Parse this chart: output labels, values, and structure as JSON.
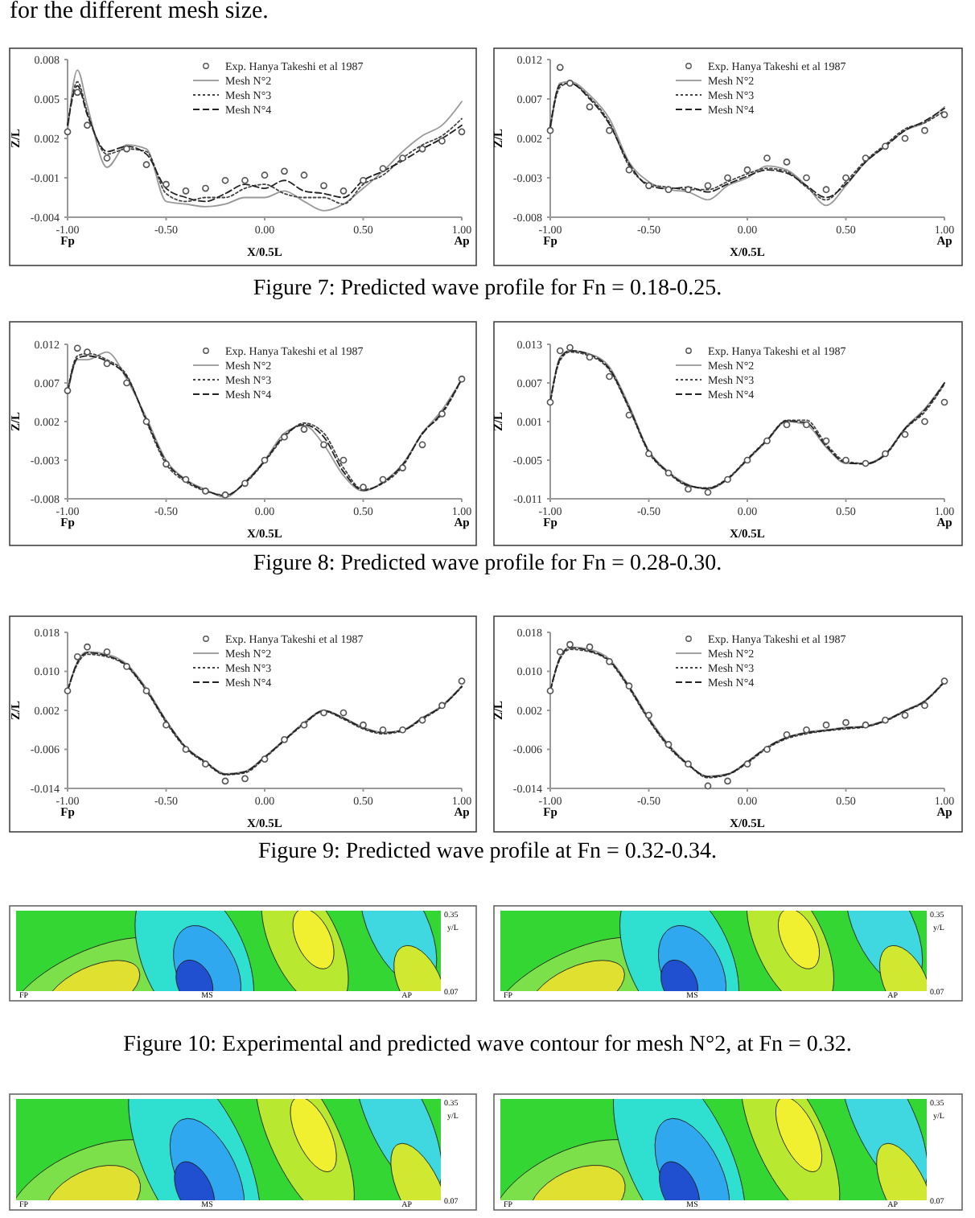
{
  "chart_data": [
    {
      "type": "line",
      "xlabel": "X/0.5L",
      "ylabel": "Z/L",
      "legend": "top",
      "xlim": [
        -1,
        1
      ],
      "ylim": [
        -0.004,
        0.008
      ],
      "xticks": [
        {
          "value": -1,
          "label": "-1.00"
        },
        {
          "value": -0.5,
          "label": "-0.50"
        },
        {
          "value": 0,
          "label": "0.00"
        },
        {
          "value": 0.5,
          "label": "0.50"
        },
        {
          "value": 1,
          "label": "1.00"
        }
      ],
      "yticks": [
        -0.004,
        -0.001,
        0.002,
        0.005,
        0.008
      ],
      "annotations": [
        "Fp",
        "Ap",
        "for the different mesh size.",
        "Figure 7: Predicted wave profile for Fn = 0.18-0.25."
      ],
      "x": [
        -1,
        -0.95,
        -0.9,
        -0.8,
        -0.7,
        -0.6,
        -0.5,
        -0.4,
        -0.3,
        -0.2,
        -0.1,
        0,
        0.1,
        0.2,
        0.3,
        0.4,
        0.5,
        0.6,
        0.7,
        0.8,
        0.9,
        1
      ],
      "series": [
        {
          "name": "Exp. Hanya Takeshi et al 1987",
          "type": "scatter",
          "marker": "circle",
          "color": "#555555",
          "values": [
            0.0025,
            0.0055,
            0.003,
            0.0005,
            0.0012,
            0.0,
            -0.0015,
            -0.002,
            -0.0018,
            -0.0012,
            -0.0012,
            -0.0008,
            -0.0005,
            -0.0008,
            -0.0016,
            -0.002,
            -0.0012,
            -0.0003,
            0.0005,
            0.0012,
            0.0018,
            0.0025
          ]
        },
        {
          "name": "Mesh N°2",
          "type": "line",
          "line_style": "solid",
          "color": "#999999",
          "values": [
            0.0025,
            0.0072,
            0.0045,
            -0.0002,
            0.0015,
            0.0012,
            -0.0028,
            -0.003,
            -0.0032,
            -0.003,
            -0.0025,
            -0.0025,
            -0.002,
            -0.0028,
            -0.0035,
            -0.003,
            -0.0018,
            -0.0005,
            0.001,
            0.0022,
            0.003,
            0.0048
          ]
        },
        {
          "name": "Mesh N°3",
          "type": "line",
          "line_style": "dotted",
          "color": "#444444",
          "values": [
            0.003,
            0.0063,
            0.004,
            0.0008,
            0.0012,
            0.001,
            -0.0022,
            -0.0028,
            -0.0025,
            -0.0025,
            -0.0018,
            -0.0015,
            -0.0022,
            -0.0025,
            -0.0025,
            -0.003,
            -0.0015,
            -0.0008,
            0.0005,
            0.0015,
            0.0022,
            0.0035
          ]
        },
        {
          "name": "Mesh N°4",
          "type": "line",
          "line_style": "dashed",
          "color": "#222222",
          "values": [
            0.003,
            0.006,
            0.0038,
            0.001,
            0.0014,
            0.0008,
            -0.0018,
            -0.0025,
            -0.0028,
            -0.0022,
            -0.0015,
            -0.0018,
            -0.0012,
            -0.002,
            -0.0022,
            -0.0025,
            -0.0012,
            -0.0005,
            0.0003,
            0.0012,
            0.002,
            0.003
          ]
        }
      ]
    },
    {
      "type": "line",
      "xlabel": "X/0.5L",
      "ylabel": "Z/L",
      "legend": "top",
      "xlim": [
        -1,
        1
      ],
      "ylim": [
        -0.008,
        0.012
      ],
      "xticks": [
        {
          "value": -1,
          "label": "-1.00"
        },
        {
          "value": -0.5,
          "label": "-0.50"
        },
        {
          "value": 0,
          "label": "0.00"
        },
        {
          "value": 0.5,
          "label": "0.50"
        },
        {
          "value": 1,
          "label": "1.00"
        }
      ],
      "yticks": [
        -0.008,
        -0.003,
        0.002,
        0.007,
        0.012
      ],
      "annotations": [
        "Fp",
        "Ap"
      ],
      "x": [
        -1,
        -0.95,
        -0.9,
        -0.8,
        -0.7,
        -0.6,
        -0.5,
        -0.4,
        -0.3,
        -0.2,
        -0.1,
        0,
        0.1,
        0.2,
        0.3,
        0.4,
        0.5,
        0.6,
        0.7,
        0.8,
        0.9,
        1
      ],
      "series": [
        {
          "name": "Exp. Hanya Takeshi et al 1987",
          "type": "scatter",
          "marker": "circle",
          "color": "#555555",
          "values": [
            0.003,
            0.011,
            0.009,
            0.006,
            0.003,
            -0.002,
            -0.004,
            -0.0045,
            -0.0045,
            -0.004,
            -0.003,
            -0.002,
            -0.0005,
            -0.001,
            -0.003,
            -0.0045,
            -0.003,
            -0.0005,
            0.001,
            0.002,
            0.003,
            0.005
          ]
        },
        {
          "name": "Mesh N°2",
          "type": "line",
          "line_style": "solid",
          "color": "#999999",
          "values": [
            0.003,
            0.009,
            0.0092,
            0.0075,
            0.0045,
            -0.001,
            -0.0035,
            -0.0045,
            -0.0048,
            -0.0058,
            -0.004,
            -0.003,
            -0.0015,
            -0.002,
            -0.004,
            -0.0065,
            -0.004,
            -0.001,
            0.001,
            0.003,
            0.004,
            0.006
          ]
        },
        {
          "name": "Mesh N°3",
          "type": "line",
          "line_style": "dotted",
          "color": "#444444",
          "values": [
            0.0035,
            0.0085,
            0.009,
            0.0072,
            0.004,
            -0.0015,
            -0.0038,
            -0.0042,
            -0.0045,
            -0.0045,
            -0.0035,
            -0.0025,
            -0.0018,
            -0.0022,
            -0.0042,
            -0.0058,
            -0.0035,
            -0.0008,
            0.0012,
            0.0032,
            0.004,
            0.0055
          ]
        },
        {
          "name": "Mesh N°4",
          "type": "line",
          "line_style": "dashed",
          "color": "#222222",
          "values": [
            0.0035,
            0.0088,
            0.009,
            0.007,
            0.0038,
            -0.0012,
            -0.004,
            -0.0044,
            -0.0042,
            -0.0048,
            -0.0038,
            -0.0028,
            -0.002,
            -0.0024,
            -0.004,
            -0.0055,
            -0.0038,
            -0.001,
            0.001,
            0.003,
            0.0042,
            0.0058
          ]
        }
      ]
    },
    {
      "type": "line",
      "xlabel": "X/0.5L",
      "ylabel": "Z/L",
      "legend": "top",
      "xlim": [
        -1,
        1
      ],
      "ylim": [
        -0.008,
        0.012
      ],
      "xticks": [
        {
          "value": -1,
          "label": "-1.00"
        },
        {
          "value": -0.5,
          "label": "-0.50"
        },
        {
          "value": 0,
          "label": "0.00"
        },
        {
          "value": 0.5,
          "label": "0.50"
        },
        {
          "value": 1,
          "label": "1.00"
        }
      ],
      "yticks": [
        -0.008,
        -0.003,
        0.002,
        0.007,
        0.012
      ],
      "annotations": [
        "Fp",
        "Ap",
        "Figure 8: Predicted wave profile for Fn = 0.28-0.30."
      ],
      "x": [
        -1,
        -0.95,
        -0.9,
        -0.8,
        -0.7,
        -0.6,
        -0.5,
        -0.4,
        -0.3,
        -0.2,
        -0.1,
        0,
        0.1,
        0.2,
        0.3,
        0.4,
        0.5,
        0.6,
        0.7,
        0.8,
        0.9,
        1
      ],
      "series": [
        {
          "name": "Exp. Hanya Takeshi et al 1987",
          "type": "scatter",
          "marker": "circle",
          "color": "#555555",
          "values": [
            0.006,
            0.0115,
            0.011,
            0.0095,
            0.007,
            0.002,
            -0.0035,
            -0.0055,
            -0.007,
            -0.0075,
            -0.006,
            -0.003,
            0.0,
            0.001,
            -0.001,
            -0.003,
            -0.0065,
            -0.0055,
            -0.004,
            -0.001,
            0.003,
            0.0075
          ]
        },
        {
          "name": "Mesh N°2",
          "type": "line",
          "line_style": "solid",
          "color": "#999999",
          "values": [
            0.0055,
            0.01,
            0.01,
            0.011,
            0.0075,
            0.0025,
            -0.003,
            -0.0055,
            -0.0068,
            -0.0078,
            -0.0058,
            -0.003,
            0.0005,
            0.0015,
            -0.001,
            -0.005,
            -0.007,
            -0.0058,
            -0.0035,
            0.0005,
            0.0035,
            0.0075
          ]
        },
        {
          "name": "Mesh N°3",
          "type": "line",
          "line_style": "dotted",
          "color": "#444444",
          "values": [
            0.006,
            0.0105,
            0.0108,
            0.01,
            0.008,
            0.002,
            -0.0035,
            -0.0058,
            -0.007,
            -0.0075,
            -0.006,
            -0.0032,
            0.0,
            0.0018,
            0.0005,
            -0.004,
            -0.0068,
            -0.006,
            -0.0038,
            0.0005,
            0.003,
            0.0075
          ]
        },
        {
          "name": "Mesh N°4",
          "type": "line",
          "line_style": "dashed",
          "color": "#222222",
          "values": [
            0.0058,
            0.0102,
            0.0105,
            0.0098,
            0.0078,
            0.0022,
            -0.0032,
            -0.0056,
            -0.0069,
            -0.0076,
            -0.0059,
            -0.0031,
            0.0002,
            0.0016,
            0.0,
            -0.0045,
            -0.0069,
            -0.0059,
            -0.0036,
            0.0004,
            0.0032,
            0.0075
          ]
        }
      ]
    },
    {
      "type": "line",
      "xlabel": "X/0.5L",
      "ylabel": "Z/L",
      "legend": "top",
      "xlim": [
        -1,
        1
      ],
      "ylim": [
        -0.011,
        0.013
      ],
      "xticks": [
        {
          "value": -1,
          "label": "-1.00"
        },
        {
          "value": -0.5,
          "label": "-0.50"
        },
        {
          "value": 0,
          "label": "0.00"
        },
        {
          "value": 0.5,
          "label": "0.50"
        },
        {
          "value": 1,
          "label": "1.00"
        }
      ],
      "yticks": [
        -0.011,
        -0.005,
        0.001,
        0.007,
        0.013
      ],
      "annotations": [
        "Fp",
        "Ap"
      ],
      "x": [
        -1,
        -0.95,
        -0.9,
        -0.8,
        -0.7,
        -0.6,
        -0.5,
        -0.4,
        -0.3,
        -0.2,
        -0.1,
        0,
        0.1,
        0.2,
        0.3,
        0.4,
        0.5,
        0.6,
        0.7,
        0.8,
        0.9,
        1
      ],
      "series": [
        {
          "name": "Exp. Hanya Takeshi et al 1987",
          "type": "scatter",
          "marker": "circle",
          "color": "#555555",
          "values": [
            0.004,
            0.012,
            0.0125,
            0.011,
            0.008,
            0.002,
            -0.004,
            -0.007,
            -0.0095,
            -0.01,
            -0.008,
            -0.005,
            -0.002,
            0.0005,
            0.0005,
            -0.002,
            -0.005,
            -0.0055,
            -0.004,
            -0.001,
            0.001,
            0.004
          ]
        },
        {
          "name": "Mesh N°2",
          "type": "line",
          "line_style": "solid",
          "color": "#999999",
          "values": [
            0.004,
            0.011,
            0.012,
            0.0115,
            0.0095,
            0.0035,
            -0.0035,
            -0.0068,
            -0.0088,
            -0.0095,
            -0.008,
            -0.005,
            -0.002,
            0.001,
            0.0005,
            -0.003,
            -0.0055,
            -0.0055,
            -0.004,
            0.0,
            0.003,
            0.007
          ]
        },
        {
          "name": "Mesh N°3",
          "type": "line",
          "line_style": "dotted",
          "color": "#444444",
          "values": [
            0.004,
            0.0105,
            0.0118,
            0.0112,
            0.009,
            0.003,
            -0.0038,
            -0.007,
            -0.009,
            -0.0093,
            -0.0078,
            -0.0048,
            -0.0018,
            0.0012,
            0.0012,
            -0.0025,
            -0.0052,
            -0.0055,
            -0.0042,
            -0.0002,
            0.0025,
            0.0068
          ]
        },
        {
          "name": "Mesh N°4",
          "type": "line",
          "line_style": "dashed",
          "color": "#222222",
          "values": [
            0.004,
            0.0108,
            0.012,
            0.0114,
            0.0092,
            0.0032,
            -0.0036,
            -0.0069,
            -0.0089,
            -0.0094,
            -0.0079,
            -0.0049,
            -0.0019,
            0.0011,
            0.0008,
            -0.0028,
            -0.0054,
            -0.0056,
            -0.0041,
            -0.0001,
            0.0028,
            0.007
          ]
        }
      ]
    },
    {
      "type": "line",
      "xlabel": "X/0.5L",
      "ylabel": "Z/L",
      "legend": "top",
      "xlim": [
        -1,
        1
      ],
      "ylim": [
        -0.014,
        0.018
      ],
      "xticks": [
        {
          "value": -1,
          "label": "-1.00"
        },
        {
          "value": -0.5,
          "label": "-0.50"
        },
        {
          "value": 0,
          "label": "0.00"
        },
        {
          "value": 0.5,
          "label": "0.50"
        },
        {
          "value": 1,
          "label": "1.00"
        }
      ],
      "yticks": [
        -0.014,
        -0.006,
        0.002,
        {
          "value": 0.01,
          "label": "0.010"
        },
        0.018
      ],
      "annotations": [
        "Fp",
        "Ap",
        "Figure 9: Predicted wave profile at Fn = 0.32-0.34."
      ],
      "x": [
        -1,
        -0.95,
        -0.9,
        -0.8,
        -0.7,
        -0.6,
        -0.5,
        -0.4,
        -0.3,
        -0.2,
        -0.1,
        0,
        0.1,
        0.2,
        0.3,
        0.4,
        0.5,
        0.6,
        0.7,
        0.8,
        0.9,
        1
      ],
      "series": [
        {
          "name": "Exp. Hanya Takeshi et al 1987",
          "type": "scatter",
          "marker": "circle",
          "color": "#555555",
          "values": [
            0.006,
            0.013,
            0.015,
            0.014,
            0.011,
            0.006,
            -0.001,
            -0.006,
            -0.009,
            -0.0125,
            -0.012,
            -0.008,
            -0.004,
            -0.001,
            0.0015,
            0.0015,
            -0.001,
            -0.002,
            -0.002,
            0.0,
            0.003,
            0.008
          ]
        },
        {
          "name": "Mesh N°2",
          "type": "line",
          "line_style": "solid",
          "color": "#999999",
          "values": [
            0.006,
            0.012,
            0.014,
            0.0135,
            0.0115,
            0.0065,
            0.0,
            -0.0055,
            -0.0085,
            -0.011,
            -0.0105,
            -0.0075,
            -0.004,
            -0.0005,
            0.002,
            0.0005,
            -0.0015,
            -0.0025,
            -0.002,
            0.0005,
            0.003,
            0.007
          ]
        },
        {
          "name": "Mesh N°3",
          "type": "line",
          "line_style": "dotted",
          "color": "#444444",
          "values": [
            0.006,
            0.0115,
            0.0135,
            0.013,
            0.011,
            0.006,
            -0.0005,
            -0.0058,
            -0.0088,
            -0.0112,
            -0.0108,
            -0.0078,
            -0.0042,
            -0.0008,
            0.0018,
            0.0002,
            -0.0018,
            -0.0028,
            -0.0022,
            0.0002,
            0.0028,
            0.0068
          ]
        },
        {
          "name": "Mesh N°4",
          "type": "line",
          "line_style": "dashed",
          "color": "#222222",
          "values": [
            0.006,
            0.0118,
            0.0138,
            0.0132,
            0.0112,
            0.0062,
            -0.0002,
            -0.0056,
            -0.0086,
            -0.0111,
            -0.0106,
            -0.0076,
            -0.0041,
            -0.0006,
            0.0019,
            0.0004,
            -0.0016,
            -0.0026,
            -0.0021,
            0.0004,
            0.0029,
            0.0069
          ]
        }
      ]
    },
    {
      "type": "line",
      "xlabel": "X/0.5L",
      "ylabel": "Z/L",
      "legend": "top",
      "xlim": [
        -1,
        1
      ],
      "ylim": [
        -0.014,
        0.018
      ],
      "xticks": [
        {
          "value": -1,
          "label": "-1.00"
        },
        {
          "value": -0.5,
          "label": "-0.50"
        },
        {
          "value": 0,
          "label": "0.00"
        },
        {
          "value": 0.5,
          "label": "0.50"
        },
        {
          "value": 1,
          "label": "1.00"
        }
      ],
      "yticks": [
        -0.014,
        -0.006,
        0.002,
        {
          "value": 0.01,
          "label": "0.010"
        },
        0.018
      ],
      "annotations": [
        "Fp",
        "Ap"
      ],
      "x": [
        -1,
        -0.95,
        -0.9,
        -0.8,
        -0.7,
        -0.6,
        -0.5,
        -0.4,
        -0.3,
        -0.2,
        -0.1,
        0,
        0.1,
        0.2,
        0.3,
        0.4,
        0.5,
        0.6,
        0.7,
        0.8,
        0.9,
        1
      ],
      "series": [
        {
          "name": "Exp. Hanya Takeshi et al 1987",
          "type": "scatter",
          "marker": "circle",
          "color": "#555555",
          "values": [
            0.006,
            0.014,
            0.0155,
            0.015,
            0.012,
            0.007,
            0.001,
            -0.005,
            -0.009,
            -0.0135,
            -0.0125,
            -0.009,
            -0.006,
            -0.003,
            -0.002,
            -0.001,
            -0.0005,
            -0.001,
            0.0,
            0.001,
            0.003,
            0.008
          ]
        },
        {
          "name": "Mesh N°2",
          "type": "line",
          "line_style": "solid",
          "color": "#999999",
          "values": [
            0.006,
            0.013,
            0.015,
            0.0145,
            0.0125,
            0.007,
            0.0005,
            -0.005,
            -0.009,
            -0.0115,
            -0.011,
            -0.0085,
            -0.0055,
            -0.0035,
            -0.0025,
            -0.002,
            -0.0015,
            -0.0012,
            0.0,
            0.002,
            0.004,
            0.008
          ]
        },
        {
          "name": "Mesh N°3",
          "type": "line",
          "line_style": "dotted",
          "color": "#444444",
          "values": [
            0.006,
            0.0125,
            0.0145,
            0.014,
            0.012,
            0.0065,
            0.0,
            -0.0055,
            -0.0092,
            -0.0118,
            -0.0112,
            -0.0088,
            -0.0058,
            -0.0038,
            -0.0028,
            -0.0022,
            -0.0018,
            -0.0014,
            -0.0002,
            0.0018,
            0.0038,
            0.0078
          ]
        },
        {
          "name": "Mesh N°4",
          "type": "line",
          "line_style": "dashed",
          "color": "#222222",
          "values": [
            0.006,
            0.0128,
            0.0148,
            0.0142,
            0.0122,
            0.0068,
            0.0002,
            -0.0052,
            -0.0091,
            -0.0116,
            -0.0111,
            -0.0086,
            -0.0056,
            -0.0036,
            -0.0026,
            -0.0021,
            -0.0016,
            -0.0013,
            -0.0001,
            0.0019,
            0.0039,
            0.0079
          ]
        }
      ]
    },
    {
      "type": "other",
      "annotations": [
        "0.35",
        "y/L",
        "FP",
        "MS",
        "AP",
        "0.07",
        "Figure 10: Experimental and predicted wave contour for mesh N°2, at Fn = 0.32."
      ]
    },
    {
      "type": "other",
      "annotations": [
        "0.35",
        "y/L",
        "FP",
        "MS",
        "AP",
        "0.07"
      ]
    },
    {
      "type": "other",
      "annotations": [
        "0.35",
        "y/L",
        "FP",
        "MS",
        "AP",
        "0.07"
      ]
    },
    {
      "type": "other",
      "annotations": [
        "0.35",
        "y/L",
        "FP",
        "MS",
        "AP",
        "0.07"
      ]
    }
  ]
}
